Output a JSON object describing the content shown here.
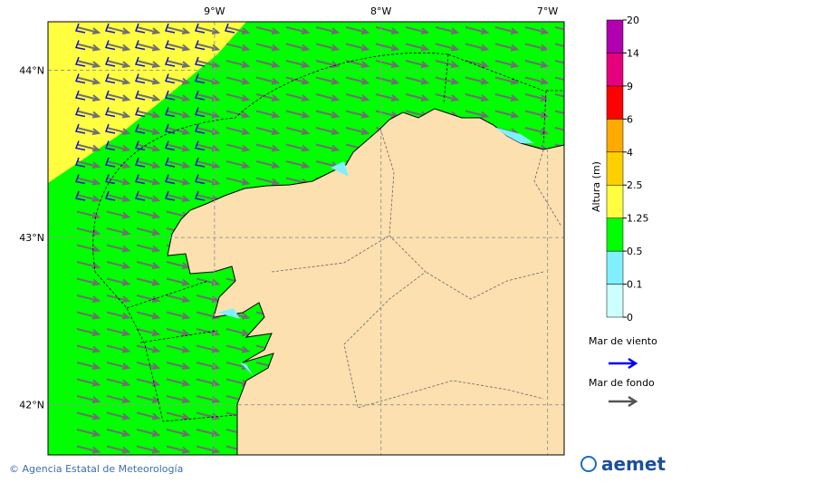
{
  "map": {
    "lonlim": [
      -10,
      -6.9
    ],
    "latlim": [
      41.7,
      44.29
    ],
    "lon_ticks": [
      {
        "value": -9,
        "label": "9°W"
      },
      {
        "value": -8,
        "label": "8°W"
      },
      {
        "value": -7,
        "label": "7°W"
      }
    ],
    "lat_ticks": [
      {
        "value": 44,
        "label": "44°N"
      },
      {
        "value": 43,
        "label": "43°N"
      },
      {
        "value": 42,
        "label": "42°N"
      }
    ]
  },
  "colorbar": {
    "label": "Altura (m)",
    "ticks": [
      0,
      0.1,
      0.5,
      1.25,
      2.5,
      4,
      6,
      9,
      14,
      20
    ],
    "colors": [
      "#ccffff",
      "#80f0ff",
      "#00ff00",
      "#ffff40",
      "#ffd000",
      "#ffaa00",
      "#ff0000",
      "#e6007e",
      "#b000b0"
    ]
  },
  "legend": {
    "items": [
      {
        "name": "Mar de viento",
        "color": "#0000ee"
      },
      {
        "name": "Mar de fondo",
        "color": "#555555"
      }
    ]
  },
  "footer": {
    "credit": "© Agencia Estatal de Meteorología",
    "logo": "aemet"
  }
}
